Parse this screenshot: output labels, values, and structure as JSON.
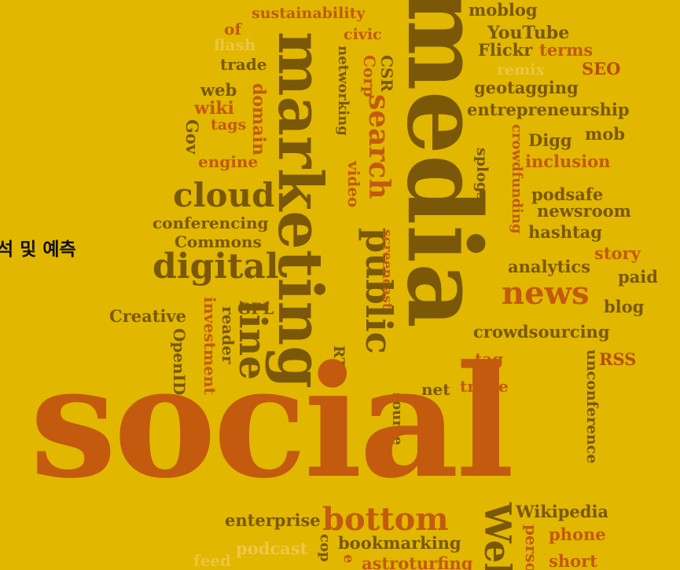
{
  "overlay_caption": "석 및 예측",
  "words": {
    "social": "social",
    "media": "media",
    "marketing": "marketing",
    "public": "public",
    "search": "search",
    "line": "line",
    "cloud": "cloud",
    "digital": "digital",
    "news": "news",
    "bottom": "bottom",
    "sustainability": "sustainability",
    "of": "of",
    "flash": "flash",
    "civic": "civic",
    "trade": "trade",
    "web": "web",
    "wiki": "wiki",
    "tags": "tags",
    "gov": "Gov",
    "engine": "engine",
    "domain": "domain",
    "networking": "networking",
    "csr": "CSR",
    "corp": "Corp",
    "video": "video",
    "conferencing": "conferencing",
    "commons": "Commons",
    "creative": "Creative",
    "gpl": "GPL",
    "investment": "investment",
    "reader": "reader",
    "openid": "OpenID",
    "rt": "RT",
    "screencast": "screencast",
    "moblog": "moblog",
    "youtube": "YouTube",
    "flickr": "Flickr",
    "terms": "terms",
    "remix": "remix",
    "seo": "SEO",
    "geotagging": "geotagging",
    "entrepreneurship": "entrepreneurship",
    "mob": "mob",
    "digg": "Digg",
    "inclusion": "inclusion",
    "crowdfunding": "crowdfunding",
    "splogs": "splogs",
    "podsafe": "podsafe",
    "newsroom": "newsroom",
    "hashtag": "hashtag",
    "story": "story",
    "analytics": "analytics",
    "paid": "paid",
    "blog": "blog",
    "crowdsourcing": "crowdsourcing",
    "tag": "tag",
    "rss": "RSS",
    "unconference": "unconference",
    "net": "net",
    "triple": "triple",
    "source": "source",
    "enterprise": "enterprise",
    "wikipedia": "Wikipedia",
    "phone": "phone",
    "podcast": "podcast",
    "bookmarking": "bookmarking",
    "feed": "feed",
    "astroturfing": "astroturfing",
    "short": "short",
    "web_bottom": "Web",
    "perso": "perso",
    "cop": "cop",
    "e": "e"
  }
}
